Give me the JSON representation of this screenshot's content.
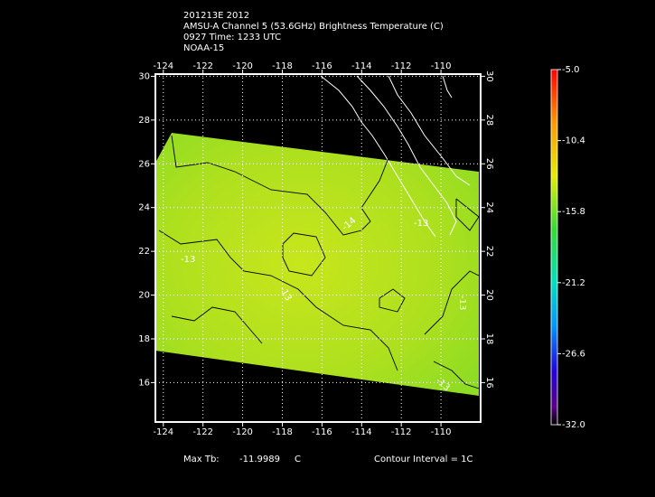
{
  "header": {
    "lines": [
      "201213E 2012",
      "AMSU-A Channel 5 (53.6GHz) Brightness Temperature (C)",
      "0927 Time: 1233 UTC",
      "NOAA-15"
    ]
  },
  "map": {
    "xlim": [
      -124.4,
      -108
    ],
    "ylim": [
      14.2,
      30.1
    ],
    "xticks": [
      -124,
      -122,
      -120,
      -118,
      -116,
      -114,
      -112,
      -110
    ],
    "yticks": [
      16,
      18,
      20,
      22,
      24,
      26,
      28,
      30
    ],
    "contour_labels": [
      "-13",
      "-13",
      "-14",
      "-13",
      "-13",
      "-13"
    ]
  },
  "colorbar": {
    "lim": [
      -32,
      -5
    ],
    "ticks": [
      {
        "value": -5,
        "label": "-5.0"
      },
      -10.4,
      -15.8,
      -21.2,
      -26.6,
      {
        "value": -32,
        "label": "-32.0"
      }
    ]
  },
  "footer": {
    "max_label": "Max Tb:",
    "max_value": -11.9989,
    "unit": "C",
    "contour": "Contour Interval = 1C"
  }
}
